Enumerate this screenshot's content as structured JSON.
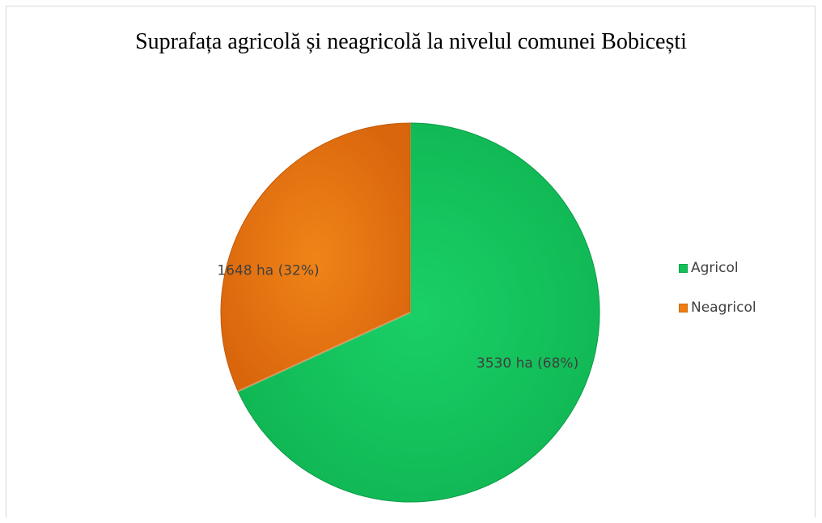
{
  "chart_data": {
    "type": "pie",
    "title": "Suprafața agricolă și neagricolă la nivelul comunei Bobicești",
    "categories": [
      "Agricol",
      "Neagricol"
    ],
    "values": [
      3530,
      1648
    ],
    "percentages": [
      68,
      32
    ],
    "data_labels": [
      "3530 ha (68%)",
      "1648 ha (32%)"
    ],
    "colors": [
      "#12c05a",
      "#f07c12"
    ],
    "legend_position": "right"
  },
  "legend": {
    "items": [
      {
        "label": "Agricol",
        "color": "#12c05a"
      },
      {
        "label": "Neagricol",
        "color": "#f07c12"
      }
    ]
  }
}
